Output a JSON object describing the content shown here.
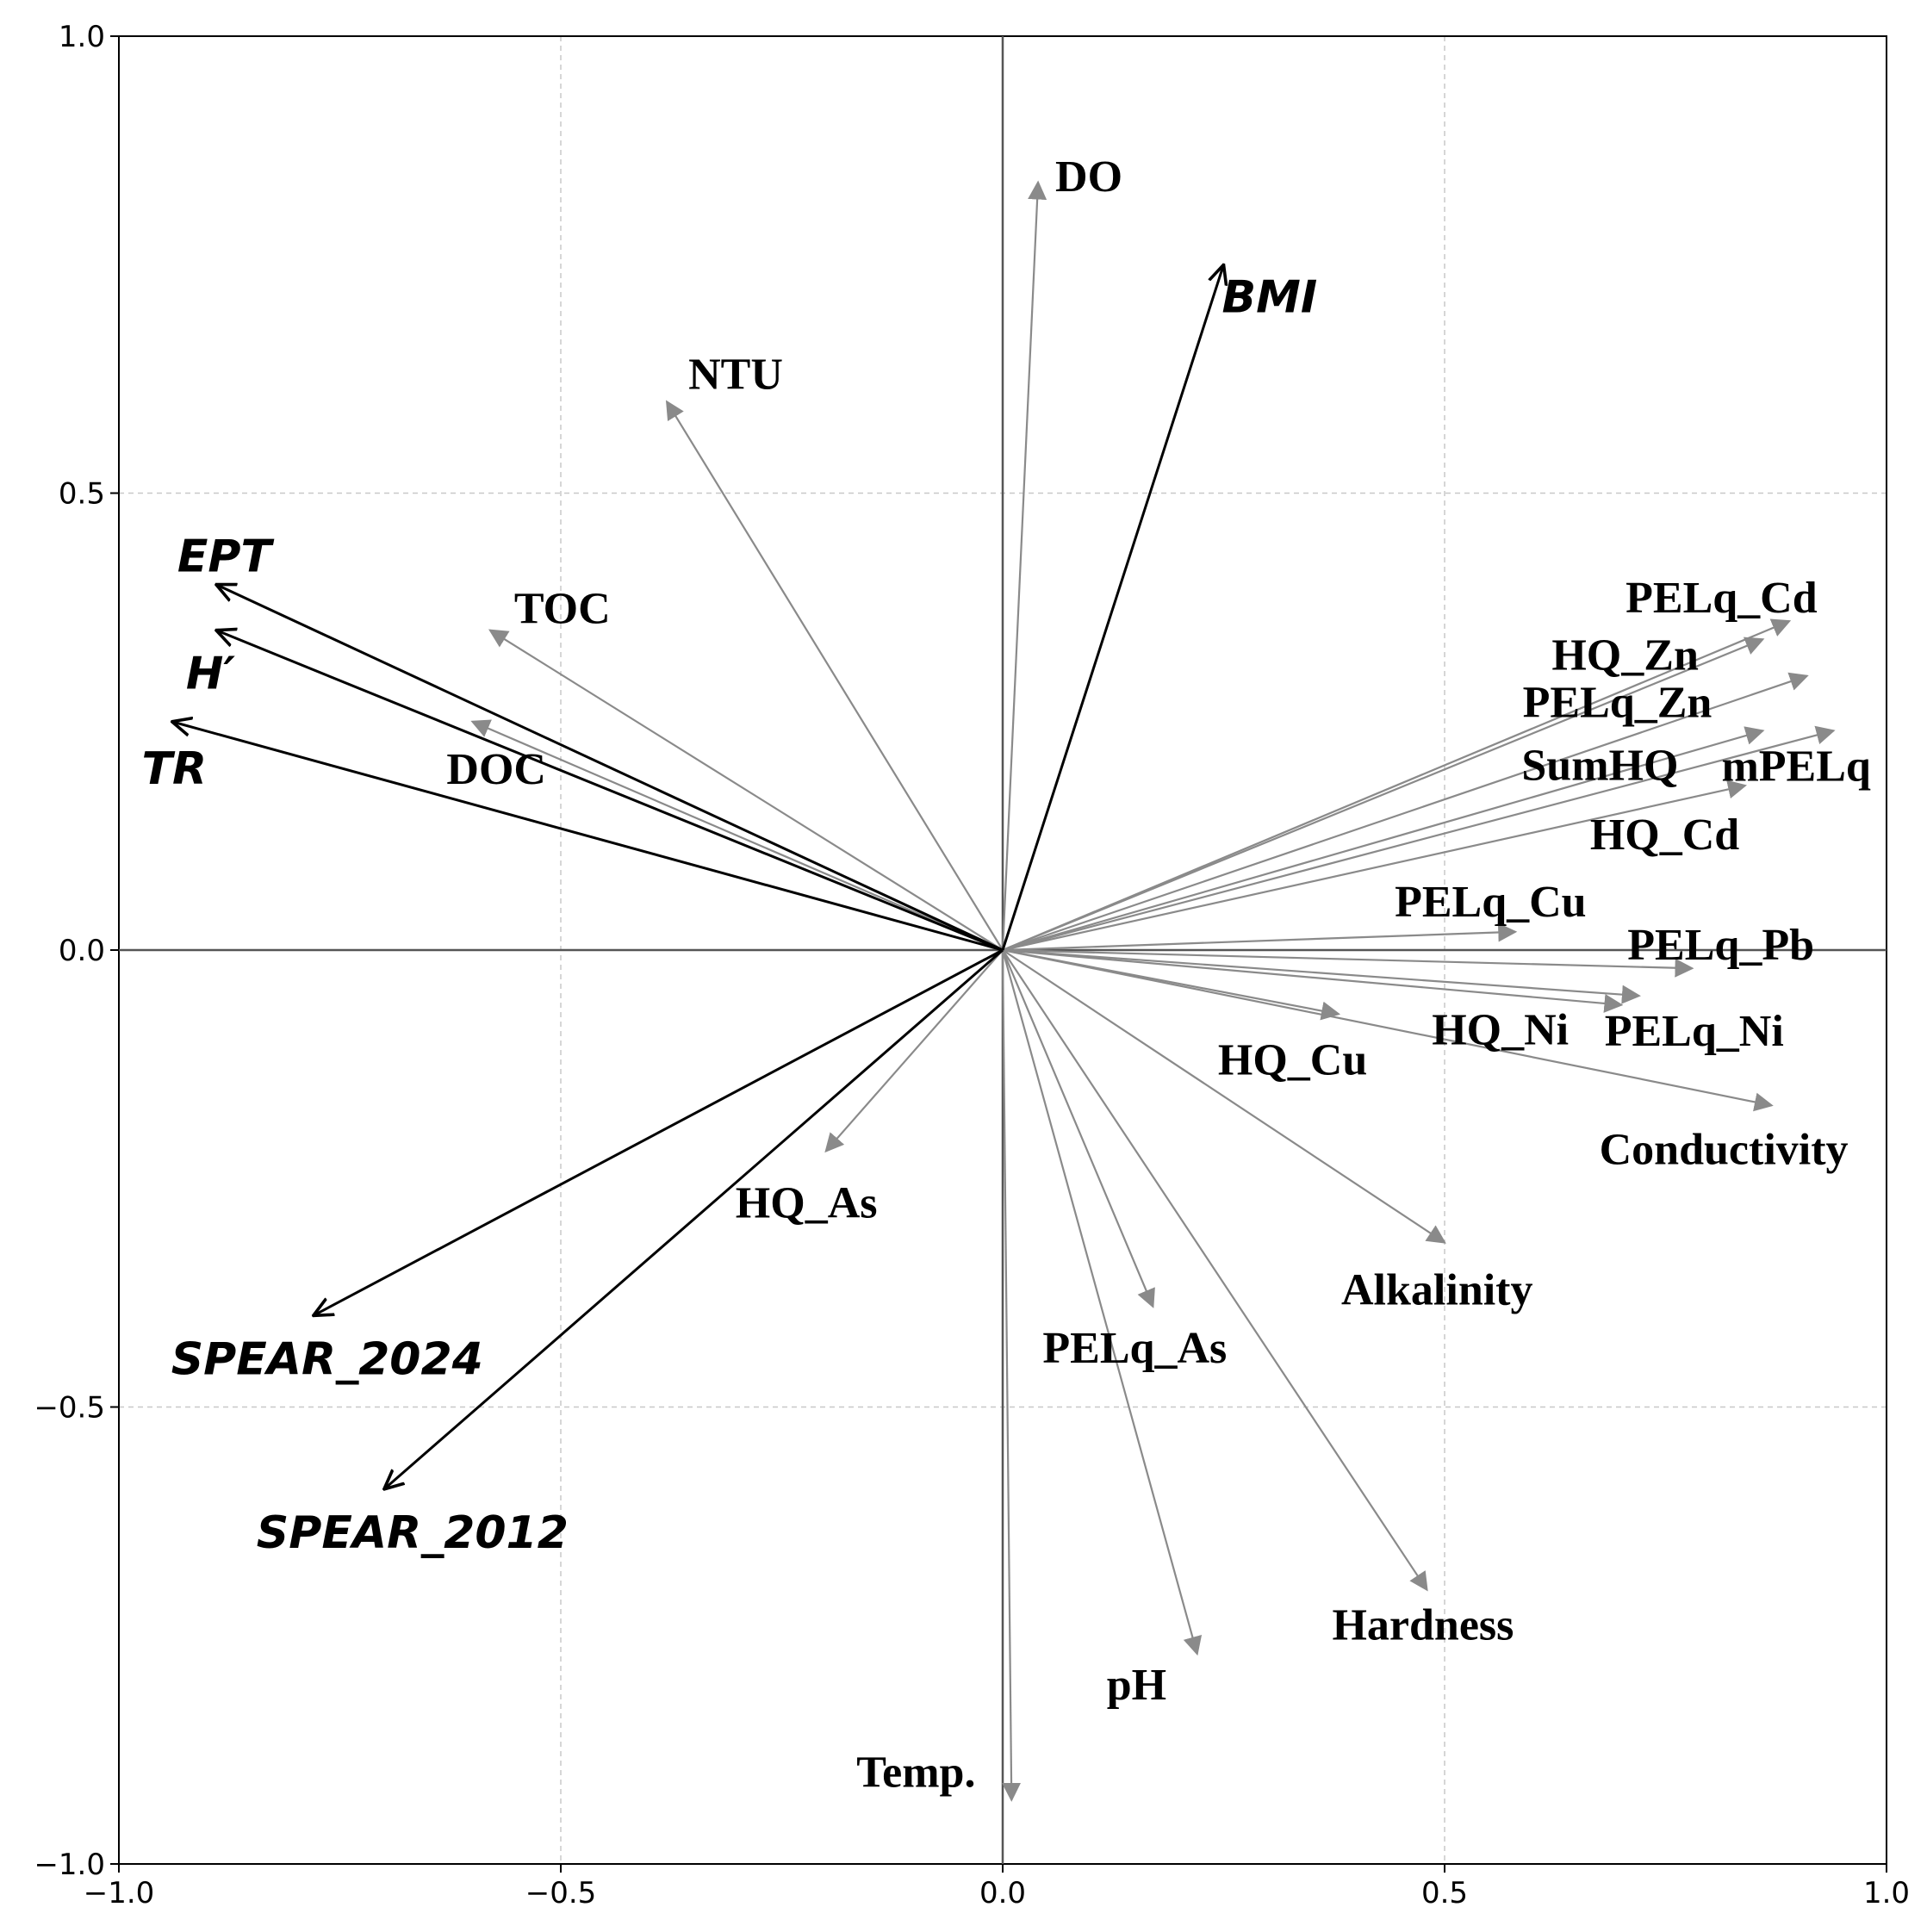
{
  "chart_data": {
    "type": "biplot",
    "xlim": [
      -1.0,
      1.0
    ],
    "ylim": [
      -1.0,
      1.0
    ],
    "xticks": [
      -1.0,
      -0.5,
      0.0,
      0.5,
      1.0
    ],
    "yticks": [
      -1.0,
      -0.5,
      0.0,
      0.5,
      1.0
    ],
    "xtick_labels": [
      "−1.0",
      "−0.5",
      "0.0",
      "0.5",
      "1.0"
    ],
    "ytick_labels": [
      "−1.0",
      "−0.5",
      "0.0",
      "0.5",
      "1.0"
    ],
    "grid": true,
    "colors": {
      "environmental": "#8a8a8a",
      "biological": "#000000",
      "grid": "#c8c8c8",
      "axes": "#555555"
    },
    "series": [
      {
        "name": "",
        "group": "environmental",
        "points": [
          {
            "label": "DO",
            "x": 0.04,
            "y": 0.84
          },
          {
            "label": "NTU",
            "x": -0.38,
            "y": 0.6
          },
          {
            "label": "TOC",
            "x": -0.58,
            "y": 0.35
          },
          {
            "label": "DOC",
            "x": -0.6,
            "y": 0.25
          },
          {
            "label": "PELq_Cd",
            "x": 0.89,
            "y": 0.36
          },
          {
            "label": "HQ_Zn",
            "x": 0.86,
            "y": 0.34
          },
          {
            "label": "PELq_Zn",
            "x": 0.91,
            "y": 0.3
          },
          {
            "label": "SumHQ",
            "x": 0.86,
            "y": 0.24
          },
          {
            "label": "mPELq",
            "x": 0.94,
            "y": 0.24
          },
          {
            "label": "HQ_Cd",
            "x": 0.84,
            "y": 0.18
          },
          {
            "label": "PELq_Cu",
            "x": 0.58,
            "y": 0.02
          },
          {
            "label": "PELq_Pb",
            "x": 0.78,
            "y": -0.02
          },
          {
            "label": "PELq_Ni",
            "x": 0.72,
            "y": -0.05
          },
          {
            "label": "HQ_Ni",
            "x": 0.7,
            "y": -0.06
          },
          {
            "label": "HQ_Cu",
            "x": 0.38,
            "y": -0.07
          },
          {
            "label": "Conductivity",
            "x": 0.87,
            "y": -0.17
          },
          {
            "label": "Alkalinity",
            "x": 0.5,
            "y": -0.32
          },
          {
            "label": "HQ_As",
            "x": -0.2,
            "y": -0.22
          },
          {
            "label": "PELq_As",
            "x": 0.17,
            "y": -0.39
          },
          {
            "label": "Hardness",
            "x": 0.48,
            "y": -0.7
          },
          {
            "label": "pH",
            "x": 0.22,
            "y": -0.77
          },
          {
            "label": "Temp.",
            "x": 0.01,
            "y": -0.93
          }
        ]
      },
      {
        "name": "",
        "group": "biological",
        "points": [
          {
            "label": "BMI",
            "x": 0.25,
            "y": 0.75
          },
          {
            "label": "EPT",
            "x": -0.89,
            "y": 0.4
          },
          {
            "label": "H′",
            "x": -0.89,
            "y": 0.35
          },
          {
            "label": "TR",
            "x": -0.94,
            "y": 0.25
          },
          {
            "label": "SPEAR_2024",
            "x": -0.78,
            "y": -0.4
          },
          {
            "label": "SPEAR_2012",
            "x": -0.7,
            "y": -0.59
          }
        ]
      }
    ]
  }
}
